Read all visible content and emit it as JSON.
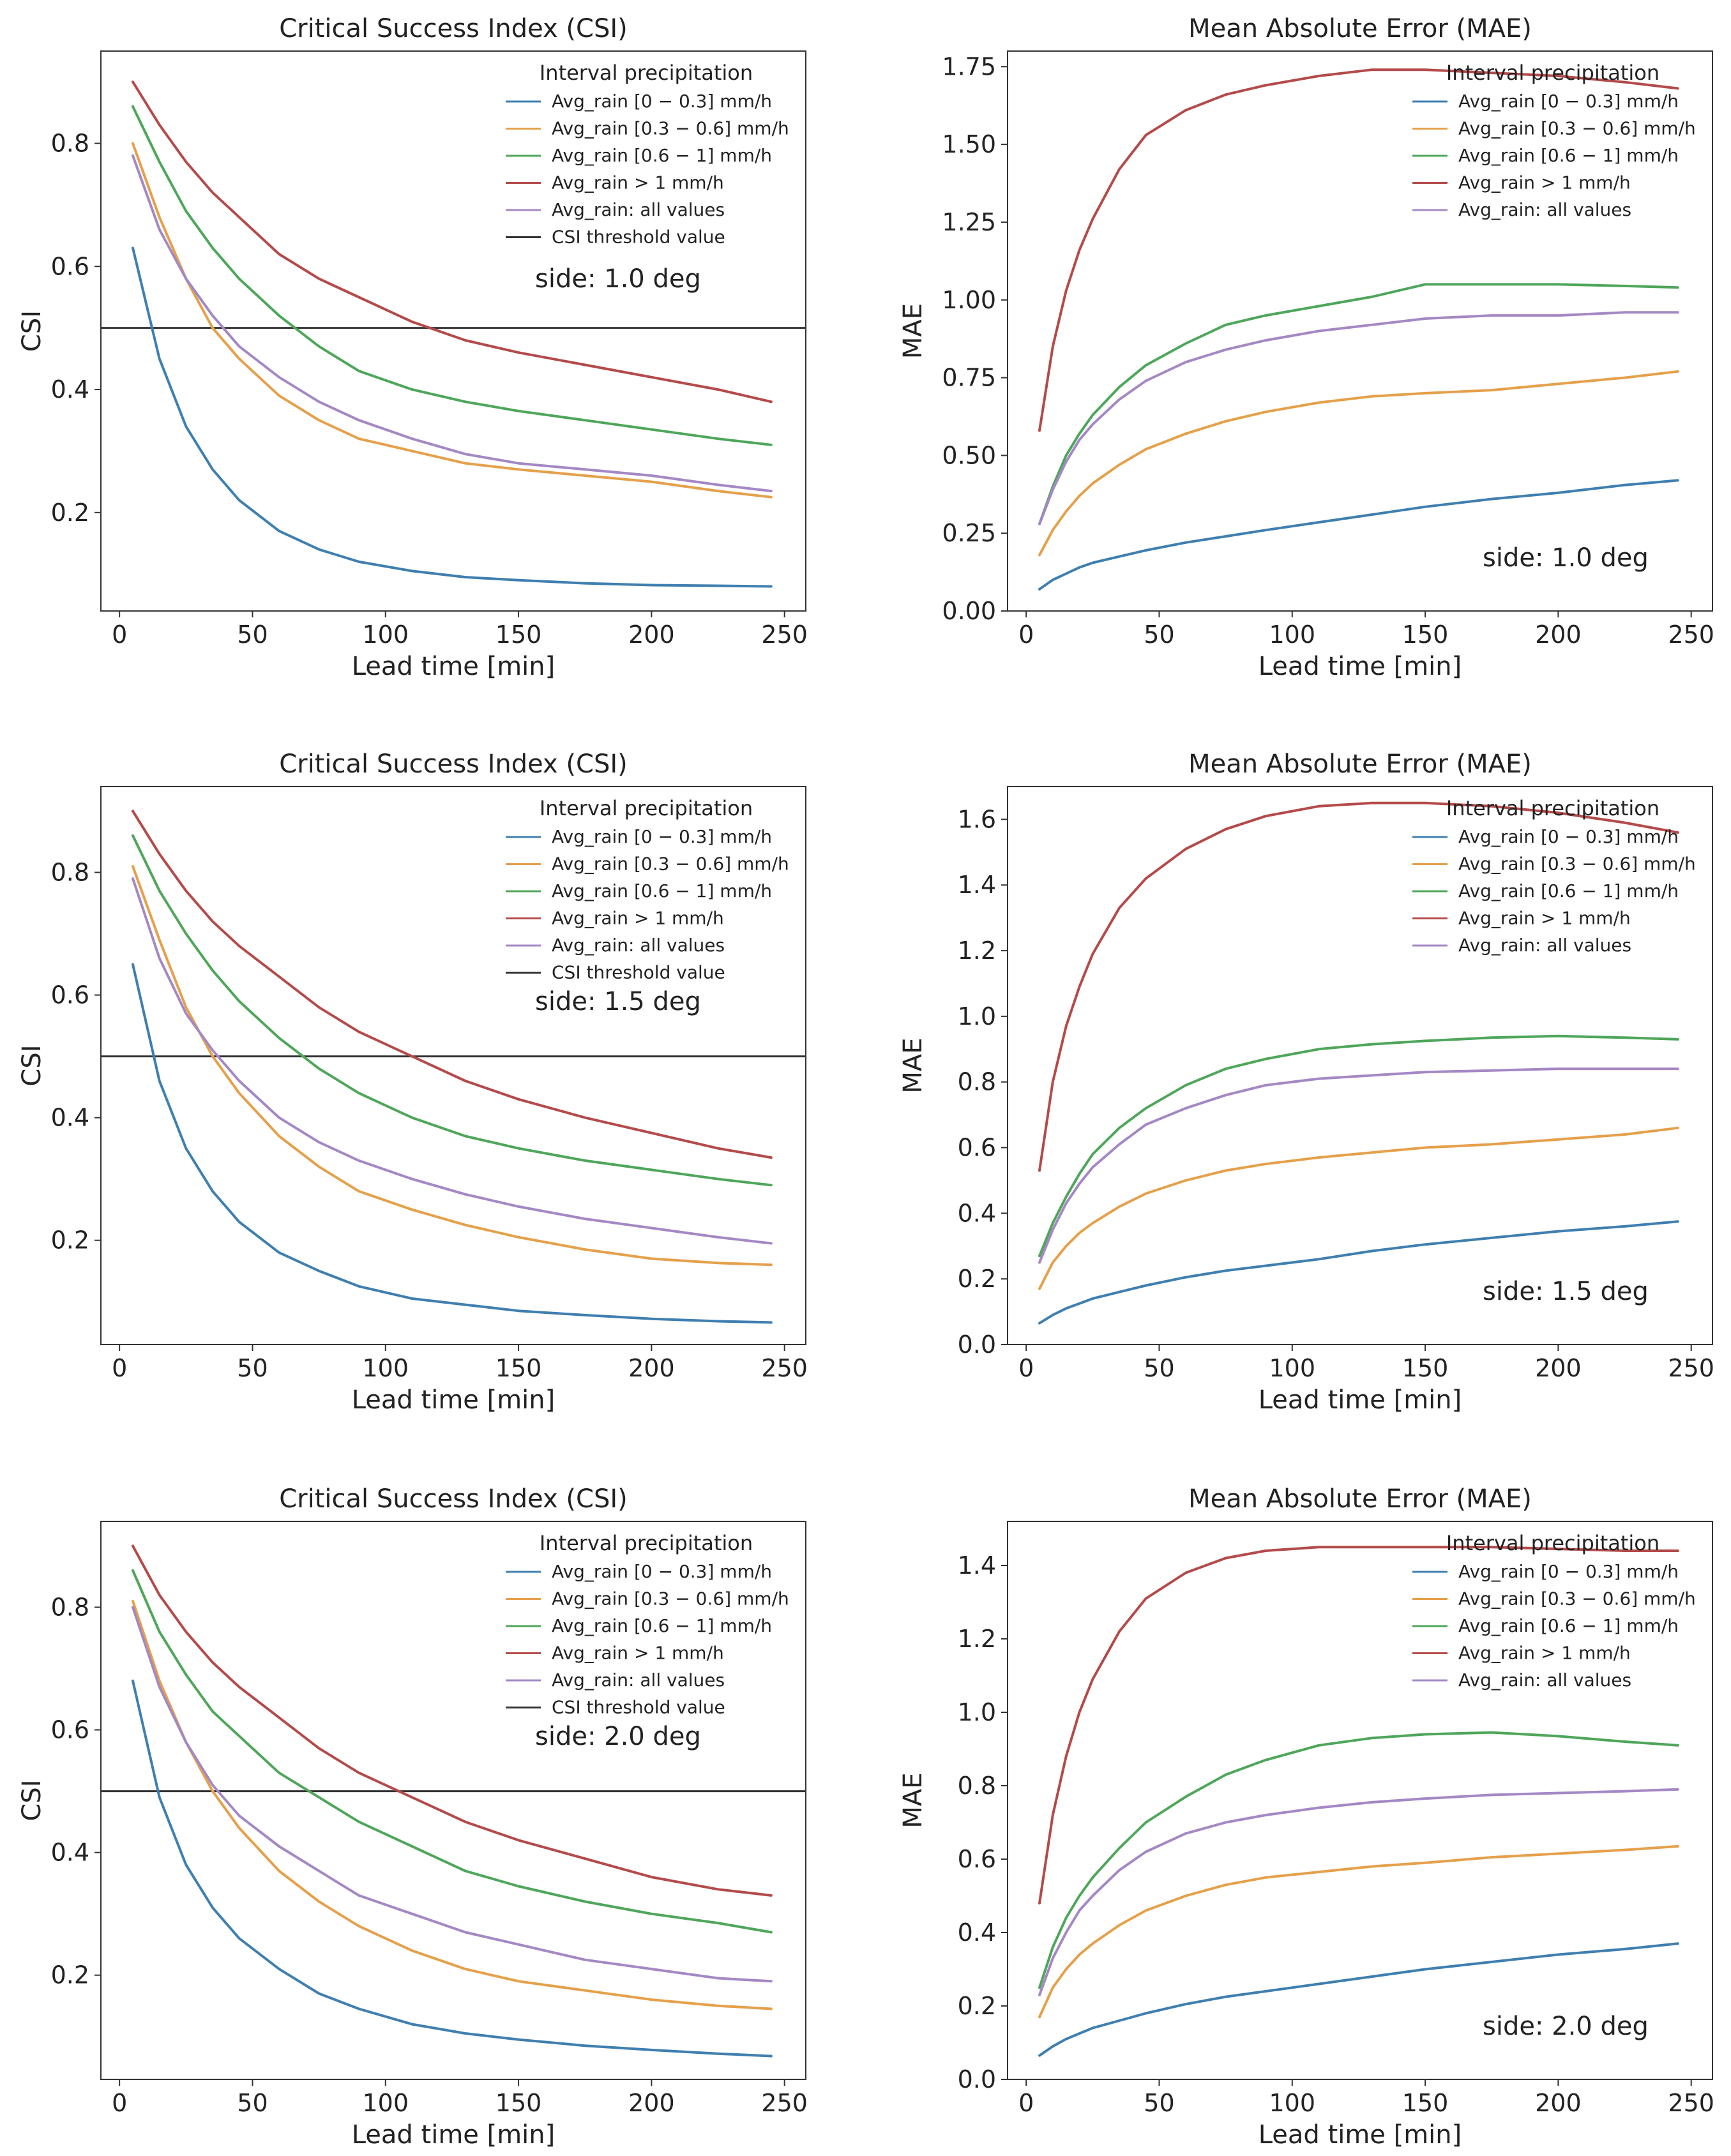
{
  "colors": {
    "bin_0_0.3": "#3f7fb0",
    "bin_0.3_0.6": "#e5a04a",
    "bin_0.6_1": "#4ea65a",
    "bin_gt1": "#b44a4a",
    "all_values": "#a488c4",
    "threshold": "#333333",
    "axes": "#333333"
  },
  "chart_data": [
    {
      "type": "line",
      "title": "Critical Success Index (CSI)",
      "xlabel": "Lead time [min]",
      "ylabel": "CSI",
      "xlim": [
        -7,
        258
      ],
      "ylim": [
        0.04,
        0.95
      ],
      "xticks": [
        0,
        50,
        100,
        150,
        200,
        250
      ],
      "yticks": [
        0.2,
        0.4,
        0.6,
        0.8
      ],
      "ytick_labels": [
        "0.2",
        "0.4",
        "0.6",
        "0.8"
      ],
      "annotation": "side: 1.0 deg",
      "legend_title": "Interval precipitation",
      "x": [
        5,
        15,
        25,
        35,
        45,
        60,
        75,
        90,
        110,
        130,
        150,
        175,
        200,
        225,
        245
      ],
      "series": [
        {
          "name": "Avg_rain [0 − 0.3] mm/h",
          "color_key": "bin_0_0.3",
          "values": [
            0.63,
            0.45,
            0.34,
            0.27,
            0.22,
            0.17,
            0.14,
            0.12,
            0.105,
            0.095,
            0.09,
            0.085,
            0.082,
            0.081,
            0.08
          ]
        },
        {
          "name": "Avg_rain [0.3 − 0.6] mm/h",
          "color_key": "bin_0.3_0.6",
          "values": [
            0.8,
            0.68,
            0.58,
            0.5,
            0.45,
            0.39,
            0.35,
            0.32,
            0.3,
            0.28,
            0.27,
            0.26,
            0.25,
            0.235,
            0.225
          ]
        },
        {
          "name": "Avg_rain [0.6 − 1] mm/h",
          "color_key": "bin_0.6_1",
          "values": [
            0.86,
            0.77,
            0.69,
            0.63,
            0.58,
            0.52,
            0.47,
            0.43,
            0.4,
            0.38,
            0.365,
            0.35,
            0.335,
            0.32,
            0.31
          ]
        },
        {
          "name": "Avg_rain > 1 mm/h",
          "color_key": "bin_gt1",
          "values": [
            0.9,
            0.83,
            0.77,
            0.72,
            0.68,
            0.62,
            0.58,
            0.55,
            0.51,
            0.48,
            0.46,
            0.44,
            0.42,
            0.4,
            0.38
          ]
        },
        {
          "name": "Avg_rain: all values",
          "color_key": "all_values",
          "values": [
            0.78,
            0.66,
            0.58,
            0.52,
            0.47,
            0.42,
            0.38,
            0.35,
            0.32,
            0.295,
            0.28,
            0.27,
            0.26,
            0.245,
            0.235
          ]
        }
      ],
      "threshold": {
        "name": "CSI threshold value",
        "value": 0.5
      }
    },
    {
      "type": "line",
      "title": "Mean Absolute Error (MAE)",
      "xlabel": "Lead time [min]",
      "ylabel": "MAE",
      "xlim": [
        -7,
        258
      ],
      "ylim": [
        0.0,
        1.8
      ],
      "xticks": [
        0,
        50,
        100,
        150,
        200,
        250
      ],
      "yticks": [
        0.0,
        0.25,
        0.5,
        0.75,
        1.0,
        1.25,
        1.5,
        1.75
      ],
      "ytick_labels": [
        "0.00",
        "0.25",
        "0.50",
        "0.75",
        "1.00",
        "1.25",
        "1.50",
        "1.75"
      ],
      "annotation": "side: 1.0 deg",
      "legend_title": "Interval precipitation",
      "x": [
        5,
        10,
        15,
        20,
        25,
        35,
        45,
        60,
        75,
        90,
        110,
        130,
        150,
        175,
        200,
        225,
        245
      ],
      "series": [
        {
          "name": "Avg_rain [0 − 0.3] mm/h",
          "color_key": "bin_0_0.3",
          "values": [
            0.07,
            0.1,
            0.12,
            0.14,
            0.155,
            0.175,
            0.195,
            0.22,
            0.24,
            0.26,
            0.285,
            0.31,
            0.335,
            0.36,
            0.38,
            0.405,
            0.42
          ]
        },
        {
          "name": "Avg_rain [0.3 − 0.6] mm/h",
          "color_key": "bin_0.3_0.6",
          "values": [
            0.18,
            0.26,
            0.32,
            0.37,
            0.41,
            0.47,
            0.52,
            0.57,
            0.61,
            0.64,
            0.67,
            0.69,
            0.7,
            0.71,
            0.73,
            0.75,
            0.77
          ]
        },
        {
          "name": "Avg_rain [0.6 − 1] mm/h",
          "color_key": "bin_0.6_1",
          "values": [
            0.28,
            0.4,
            0.5,
            0.57,
            0.63,
            0.72,
            0.79,
            0.86,
            0.92,
            0.95,
            0.98,
            1.01,
            1.05,
            1.05,
            1.05,
            1.045,
            1.04
          ]
        },
        {
          "name": "Avg_rain > 1 mm/h",
          "color_key": "bin_gt1",
          "values": [
            0.58,
            0.85,
            1.03,
            1.16,
            1.26,
            1.42,
            1.53,
            1.61,
            1.66,
            1.69,
            1.72,
            1.74,
            1.74,
            1.73,
            1.72,
            1.7,
            1.68
          ]
        },
        {
          "name": "Avg_rain: all values",
          "color_key": "all_values",
          "values": [
            0.28,
            0.39,
            0.48,
            0.55,
            0.6,
            0.68,
            0.74,
            0.8,
            0.84,
            0.87,
            0.9,
            0.92,
            0.94,
            0.95,
            0.95,
            0.96,
            0.96
          ]
        }
      ]
    },
    {
      "type": "line",
      "title": "Critical Success Index (CSI)",
      "xlabel": "Lead time [min]",
      "ylabel": "CSI",
      "xlim": [
        -7,
        258
      ],
      "ylim": [
        0.03,
        0.94
      ],
      "xticks": [
        0,
        50,
        100,
        150,
        200,
        250
      ],
      "yticks": [
        0.2,
        0.4,
        0.6,
        0.8
      ],
      "ytick_labels": [
        "0.2",
        "0.4",
        "0.6",
        "0.8"
      ],
      "annotation": "side: 1.5 deg",
      "legend_title": "Interval precipitation",
      "x": [
        5,
        15,
        25,
        35,
        45,
        60,
        75,
        90,
        110,
        130,
        150,
        175,
        200,
        225,
        245
      ],
      "series": [
        {
          "name": "Avg_rain [0 − 0.3] mm/h",
          "color_key": "bin_0_0.3",
          "values": [
            0.65,
            0.46,
            0.35,
            0.28,
            0.23,
            0.18,
            0.15,
            0.125,
            0.105,
            0.095,
            0.085,
            0.078,
            0.072,
            0.068,
            0.066
          ]
        },
        {
          "name": "Avg_rain [0.3 − 0.6] mm/h",
          "color_key": "bin_0.3_0.6",
          "values": [
            0.81,
            0.69,
            0.58,
            0.5,
            0.44,
            0.37,
            0.32,
            0.28,
            0.25,
            0.225,
            0.205,
            0.185,
            0.17,
            0.163,
            0.16
          ]
        },
        {
          "name": "Avg_rain [0.6 − 1] mm/h",
          "color_key": "bin_0.6_1",
          "values": [
            0.86,
            0.77,
            0.7,
            0.64,
            0.59,
            0.53,
            0.48,
            0.44,
            0.4,
            0.37,
            0.35,
            0.33,
            0.315,
            0.3,
            0.29
          ]
        },
        {
          "name": "Avg_rain > 1 mm/h",
          "color_key": "bin_gt1",
          "values": [
            0.9,
            0.83,
            0.77,
            0.72,
            0.68,
            0.63,
            0.58,
            0.54,
            0.5,
            0.46,
            0.43,
            0.4,
            0.375,
            0.35,
            0.335
          ]
        },
        {
          "name": "Avg_rain: all values",
          "color_key": "all_values",
          "values": [
            0.79,
            0.66,
            0.57,
            0.51,
            0.46,
            0.4,
            0.36,
            0.33,
            0.3,
            0.275,
            0.255,
            0.235,
            0.22,
            0.205,
            0.195
          ]
        }
      ],
      "threshold": {
        "name": "CSI threshold value",
        "value": 0.5
      }
    },
    {
      "type": "line",
      "title": "Mean Absolute Error (MAE)",
      "xlabel": "Lead time [min]",
      "ylabel": "MAE",
      "xlim": [
        -7,
        258
      ],
      "ylim": [
        0.0,
        1.7
      ],
      "xticks": [
        0,
        50,
        100,
        150,
        200,
        250
      ],
      "yticks": [
        0.0,
        0.2,
        0.4,
        0.6,
        0.8,
        1.0,
        1.2,
        1.4,
        1.6
      ],
      "ytick_labels": [
        "0.0",
        "0.2",
        "0.4",
        "0.6",
        "0.8",
        "1.0",
        "1.2",
        "1.4",
        "1.6"
      ],
      "annotation": "side: 1.5 deg",
      "legend_title": "Interval precipitation",
      "x": [
        5,
        10,
        15,
        20,
        25,
        35,
        45,
        60,
        75,
        90,
        110,
        130,
        150,
        175,
        200,
        225,
        245
      ],
      "series": [
        {
          "name": "Avg_rain [0 − 0.3] mm/h",
          "color_key": "bin_0_0.3",
          "values": [
            0.065,
            0.09,
            0.11,
            0.125,
            0.14,
            0.16,
            0.18,
            0.205,
            0.225,
            0.24,
            0.26,
            0.285,
            0.305,
            0.325,
            0.345,
            0.36,
            0.375
          ]
        },
        {
          "name": "Avg_rain [0.3 − 0.6] mm/h",
          "color_key": "bin_0.3_0.6",
          "values": [
            0.17,
            0.25,
            0.3,
            0.34,
            0.37,
            0.42,
            0.46,
            0.5,
            0.53,
            0.55,
            0.57,
            0.585,
            0.6,
            0.61,
            0.625,
            0.64,
            0.66
          ]
        },
        {
          "name": "Avg_rain [0.6 − 1] mm/h",
          "color_key": "bin_0.6_1",
          "values": [
            0.27,
            0.37,
            0.45,
            0.52,
            0.58,
            0.66,
            0.72,
            0.79,
            0.84,
            0.87,
            0.9,
            0.915,
            0.925,
            0.935,
            0.94,
            0.935,
            0.93
          ]
        },
        {
          "name": "Avg_rain > 1 mm/h",
          "color_key": "bin_gt1",
          "values": [
            0.53,
            0.8,
            0.97,
            1.09,
            1.19,
            1.33,
            1.42,
            1.51,
            1.57,
            1.61,
            1.64,
            1.65,
            1.65,
            1.64,
            1.62,
            1.59,
            1.56
          ]
        },
        {
          "name": "Avg_rain: all values",
          "color_key": "all_values",
          "values": [
            0.25,
            0.35,
            0.43,
            0.49,
            0.54,
            0.61,
            0.67,
            0.72,
            0.76,
            0.79,
            0.81,
            0.82,
            0.83,
            0.835,
            0.84,
            0.84,
            0.84
          ]
        }
      ]
    },
    {
      "type": "line",
      "title": "Critical Success Index (CSI)",
      "xlabel": "Lead time [min]",
      "ylabel": "CSI",
      "xlim": [
        -7,
        258
      ],
      "ylim": [
        0.03,
        0.94
      ],
      "xticks": [
        0,
        50,
        100,
        150,
        200,
        250
      ],
      "yticks": [
        0.2,
        0.4,
        0.6,
        0.8
      ],
      "ytick_labels": [
        "0.2",
        "0.4",
        "0.6",
        "0.8"
      ],
      "annotation": "side: 2.0 deg",
      "legend_title": "Interval precipitation",
      "x": [
        5,
        15,
        25,
        35,
        45,
        60,
        75,
        90,
        110,
        130,
        150,
        175,
        200,
        225,
        245
      ],
      "series": [
        {
          "name": "Avg_rain [0 − 0.3] mm/h",
          "color_key": "bin_0_0.3",
          "values": [
            0.68,
            0.49,
            0.38,
            0.31,
            0.26,
            0.21,
            0.17,
            0.145,
            0.12,
            0.105,
            0.095,
            0.085,
            0.078,
            0.072,
            0.068
          ]
        },
        {
          "name": "Avg_rain [0.3 − 0.6] mm/h",
          "color_key": "bin_0.3_0.6",
          "values": [
            0.81,
            0.68,
            0.58,
            0.5,
            0.44,
            0.37,
            0.32,
            0.28,
            0.24,
            0.21,
            0.19,
            0.175,
            0.16,
            0.15,
            0.145
          ]
        },
        {
          "name": "Avg_rain [0.6 − 1] mm/h",
          "color_key": "bin_0.6_1",
          "values": [
            0.86,
            0.76,
            0.69,
            0.63,
            0.59,
            0.53,
            0.49,
            0.45,
            0.41,
            0.37,
            0.345,
            0.32,
            0.3,
            0.285,
            0.27
          ]
        },
        {
          "name": "Avg_rain > 1 mm/h",
          "color_key": "bin_gt1",
          "values": [
            0.9,
            0.82,
            0.76,
            0.71,
            0.67,
            0.62,
            0.57,
            0.53,
            0.49,
            0.45,
            0.42,
            0.39,
            0.36,
            0.34,
            0.33
          ]
        },
        {
          "name": "Avg_rain: all values",
          "color_key": "all_values",
          "values": [
            0.8,
            0.67,
            0.58,
            0.51,
            0.46,
            0.41,
            0.37,
            0.33,
            0.3,
            0.27,
            0.25,
            0.225,
            0.21,
            0.195,
            0.19
          ]
        }
      ],
      "threshold": {
        "name": "CSI threshold value",
        "value": 0.5
      }
    },
    {
      "type": "line",
      "title": "Mean Absolute Error (MAE)",
      "xlabel": "Lead time [min]",
      "ylabel": "MAE",
      "xlim": [
        -7,
        258
      ],
      "ylim": [
        0.0,
        1.52
      ],
      "xticks": [
        0,
        50,
        100,
        150,
        200,
        250
      ],
      "yticks": [
        0.0,
        0.2,
        0.4,
        0.6,
        0.8,
        1.0,
        1.2,
        1.4
      ],
      "ytick_labels": [
        "0.0",
        "0.2",
        "0.4",
        "0.6",
        "0.8",
        "1.0",
        "1.2",
        "1.4"
      ],
      "annotation": "side: 2.0 deg",
      "legend_title": "Interval precipitation",
      "x": [
        5,
        10,
        15,
        20,
        25,
        35,
        45,
        60,
        75,
        90,
        110,
        130,
        150,
        175,
        200,
        225,
        245
      ],
      "series": [
        {
          "name": "Avg_rain [0 − 0.3] mm/h",
          "color_key": "bin_0_0.3",
          "values": [
            0.065,
            0.09,
            0.11,
            0.125,
            0.14,
            0.16,
            0.18,
            0.205,
            0.225,
            0.24,
            0.26,
            0.28,
            0.3,
            0.32,
            0.34,
            0.355,
            0.37
          ]
        },
        {
          "name": "Avg_rain [0.3 − 0.6] mm/h",
          "color_key": "bin_0.3_0.6",
          "values": [
            0.17,
            0.25,
            0.3,
            0.34,
            0.37,
            0.42,
            0.46,
            0.5,
            0.53,
            0.55,
            0.565,
            0.58,
            0.59,
            0.605,
            0.615,
            0.625,
            0.635
          ]
        },
        {
          "name": "Avg_rain [0.6 − 1] mm/h",
          "color_key": "bin_0.6_1",
          "values": [
            0.25,
            0.36,
            0.44,
            0.5,
            0.55,
            0.63,
            0.7,
            0.77,
            0.83,
            0.87,
            0.91,
            0.93,
            0.94,
            0.945,
            0.935,
            0.92,
            0.91
          ]
        },
        {
          "name": "Avg_rain > 1 mm/h",
          "color_key": "bin_gt1",
          "values": [
            0.48,
            0.72,
            0.88,
            1.0,
            1.09,
            1.22,
            1.31,
            1.38,
            1.42,
            1.44,
            1.45,
            1.45,
            1.45,
            1.45,
            1.445,
            1.44,
            1.44
          ]
        },
        {
          "name": "Avg_rain: all values",
          "color_key": "all_values",
          "values": [
            0.23,
            0.33,
            0.4,
            0.46,
            0.5,
            0.57,
            0.62,
            0.67,
            0.7,
            0.72,
            0.74,
            0.755,
            0.765,
            0.775,
            0.78,
            0.785,
            0.79
          ]
        }
      ]
    }
  ]
}
